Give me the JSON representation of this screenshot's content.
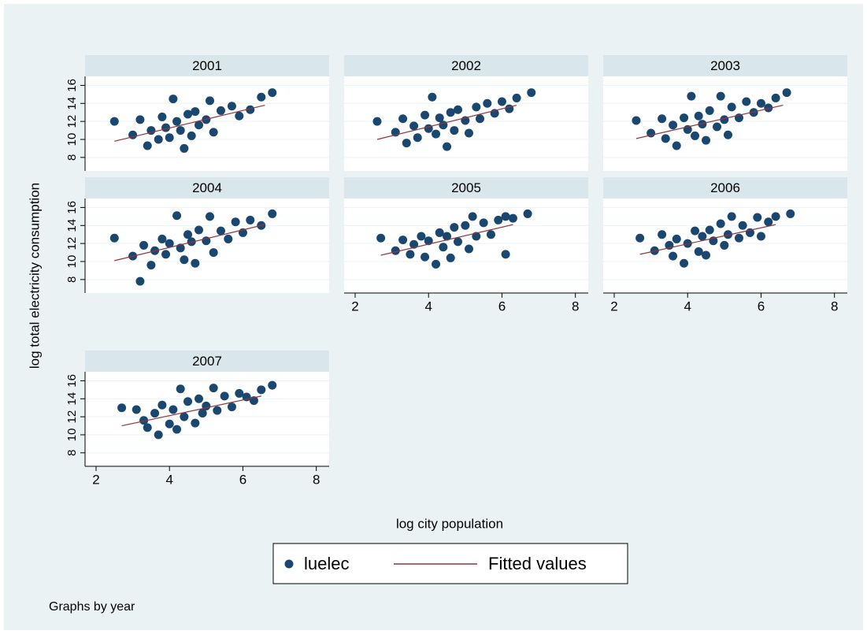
{
  "chart_data": {
    "type": "scatter",
    "x_label": "log city population",
    "y_label": "log total electricity consumption",
    "note": "Graphs by year",
    "xlim": [
      1.7,
      8.35
    ],
    "xticks": [
      2,
      4,
      6,
      8
    ],
    "ylim": [
      6.5,
      17
    ],
    "yticks": [
      8,
      10,
      12,
      14,
      16
    ],
    "grid": true,
    "series": [
      {
        "name": "luelec",
        "color": "#1a476f"
      },
      {
        "name": "Fitted values",
        "color": "#90353b"
      }
    ],
    "panels": [
      {
        "title": "2001",
        "luelec": {
          "x": [
            2.5,
            3.0,
            3.2,
            3.4,
            3.5,
            3.7,
            3.8,
            3.9,
            4.0,
            4.1,
            4.2,
            4.3,
            4.4,
            4.5,
            4.6,
            4.7,
            4.8,
            5.0,
            5.1,
            5.2,
            5.4,
            5.7,
            5.9,
            6.2,
            6.5,
            6.8
          ],
          "values": [
            12.0,
            10.5,
            12.2,
            9.3,
            11.0,
            10.0,
            12.5,
            11.3,
            10.2,
            14.5,
            12.0,
            11.0,
            9.0,
            12.8,
            10.4,
            13.1,
            11.6,
            12.2,
            14.3,
            10.8,
            13.2,
            13.7,
            12.6,
            13.3,
            14.7,
            15.2
          ]
        },
        "fit": {
          "x": [
            2.5,
            6.6
          ],
          "values": [
            9.8,
            13.8
          ]
        }
      },
      {
        "title": "2002",
        "luelec": {
          "x": [
            2.6,
            3.1,
            3.3,
            3.4,
            3.6,
            3.7,
            3.9,
            4.0,
            4.1,
            4.2,
            4.3,
            4.4,
            4.5,
            4.6,
            4.7,
            4.8,
            5.0,
            5.1,
            5.3,
            5.4,
            5.6,
            5.8,
            6.0,
            6.2,
            6.4,
            6.8
          ],
          "values": [
            12.0,
            10.8,
            12.3,
            9.6,
            11.5,
            10.2,
            12.7,
            11.2,
            14.7,
            10.6,
            12.4,
            11.6,
            9.2,
            13.0,
            11.0,
            13.3,
            12.1,
            10.7,
            13.6,
            12.3,
            14.0,
            12.9,
            14.2,
            13.4,
            14.6,
            15.2
          ]
        },
        "fit": {
          "x": [
            2.6,
            6.4
          ],
          "values": [
            10.0,
            13.8
          ]
        }
      },
      {
        "title": "2003",
        "luelec": {
          "x": [
            2.6,
            3.0,
            3.3,
            3.4,
            3.6,
            3.7,
            3.9,
            4.0,
            4.1,
            4.2,
            4.3,
            4.4,
            4.5,
            4.6,
            4.8,
            4.9,
            5.0,
            5.1,
            5.2,
            5.4,
            5.6,
            5.8,
            6.0,
            6.2,
            6.4,
            6.7
          ],
          "values": [
            12.1,
            10.7,
            12.3,
            10.1,
            11.6,
            9.3,
            12.4,
            11.1,
            14.8,
            10.4,
            12.6,
            11.7,
            9.9,
            13.2,
            11.4,
            14.8,
            12.2,
            10.5,
            13.6,
            12.4,
            14.2,
            13.0,
            14.0,
            13.5,
            14.6,
            15.2
          ]
        },
        "fit": {
          "x": [
            2.6,
            6.6
          ],
          "values": [
            10.1,
            13.8
          ]
        }
      },
      {
        "title": "2004",
        "luelec": {
          "x": [
            2.5,
            3.0,
            3.2,
            3.3,
            3.5,
            3.6,
            3.8,
            3.9,
            4.0,
            4.2,
            4.3,
            4.4,
            4.5,
            4.6,
            4.7,
            4.8,
            5.0,
            5.1,
            5.2,
            5.4,
            5.6,
            5.8,
            6.0,
            6.2,
            6.5,
            6.8
          ],
          "values": [
            12.6,
            10.6,
            7.8,
            11.8,
            9.6,
            11.2,
            12.5,
            10.8,
            12.0,
            15.1,
            11.5,
            10.2,
            13.0,
            12.2,
            9.8,
            13.5,
            12.3,
            15.0,
            11.0,
            13.4,
            12.5,
            14.4,
            13.2,
            14.6,
            14.0,
            15.3
          ]
        },
        "fit": {
          "x": [
            2.5,
            6.6
          ],
          "values": [
            10.1,
            14.1
          ]
        }
      },
      {
        "title": "2005",
        "luelec": {
          "x": [
            2.7,
            3.1,
            3.3,
            3.5,
            3.6,
            3.8,
            3.9,
            4.0,
            4.2,
            4.3,
            4.4,
            4.5,
            4.6,
            4.7,
            4.8,
            5.0,
            5.1,
            5.2,
            5.3,
            5.5,
            5.7,
            5.9,
            6.1,
            6.1,
            6.3,
            6.7
          ],
          "values": [
            12.6,
            11.2,
            12.4,
            10.8,
            11.9,
            12.8,
            10.5,
            12.3,
            9.7,
            13.2,
            11.6,
            12.8,
            10.4,
            13.8,
            12.2,
            14.0,
            11.4,
            15.0,
            12.8,
            14.3,
            13.0,
            14.6,
            10.8,
            15.0,
            14.8,
            15.3
          ]
        },
        "fit": {
          "x": [
            2.7,
            6.3
          ],
          "values": [
            10.7,
            14.1
          ]
        }
      },
      {
        "title": "2006",
        "luelec": {
          "x": [
            2.7,
            3.1,
            3.3,
            3.5,
            3.6,
            3.7,
            3.9,
            4.0,
            4.2,
            4.3,
            4.4,
            4.5,
            4.6,
            4.7,
            4.9,
            5.0,
            5.1,
            5.2,
            5.4,
            5.5,
            5.7,
            5.9,
            6.0,
            6.2,
            6.4,
            6.8
          ],
          "values": [
            12.6,
            11.2,
            13.0,
            11.8,
            10.6,
            12.5,
            9.8,
            12.0,
            13.4,
            11.1,
            12.8,
            10.7,
            13.5,
            12.3,
            14.2,
            11.8,
            13.0,
            15.0,
            12.6,
            14.0,
            13.2,
            14.9,
            12.8,
            14.4,
            15.0,
            15.3
          ]
        },
        "fit": {
          "x": [
            2.7,
            6.4
          ],
          "values": [
            10.8,
            14.1
          ]
        }
      },
      {
        "title": "2007",
        "luelec": {
          "x": [
            2.7,
            3.1,
            3.3,
            3.4,
            3.6,
            3.7,
            3.8,
            4.0,
            4.1,
            4.2,
            4.3,
            4.4,
            4.5,
            4.7,
            4.8,
            4.9,
            5.0,
            5.2,
            5.3,
            5.5,
            5.7,
            5.9,
            6.1,
            6.3,
            6.5,
            6.8
          ],
          "values": [
            13.0,
            12.8,
            11.6,
            10.8,
            12.4,
            10.0,
            13.3,
            11.2,
            12.8,
            10.6,
            15.1,
            12.0,
            13.7,
            11.3,
            14.0,
            12.4,
            13.2,
            15.2,
            12.7,
            14.3,
            13.1,
            14.6,
            14.2,
            13.8,
            15.0,
            15.5
          ]
        },
        "fit": {
          "x": [
            2.7,
            6.5
          ],
          "values": [
            11.0,
            14.3
          ]
        }
      }
    ]
  }
}
